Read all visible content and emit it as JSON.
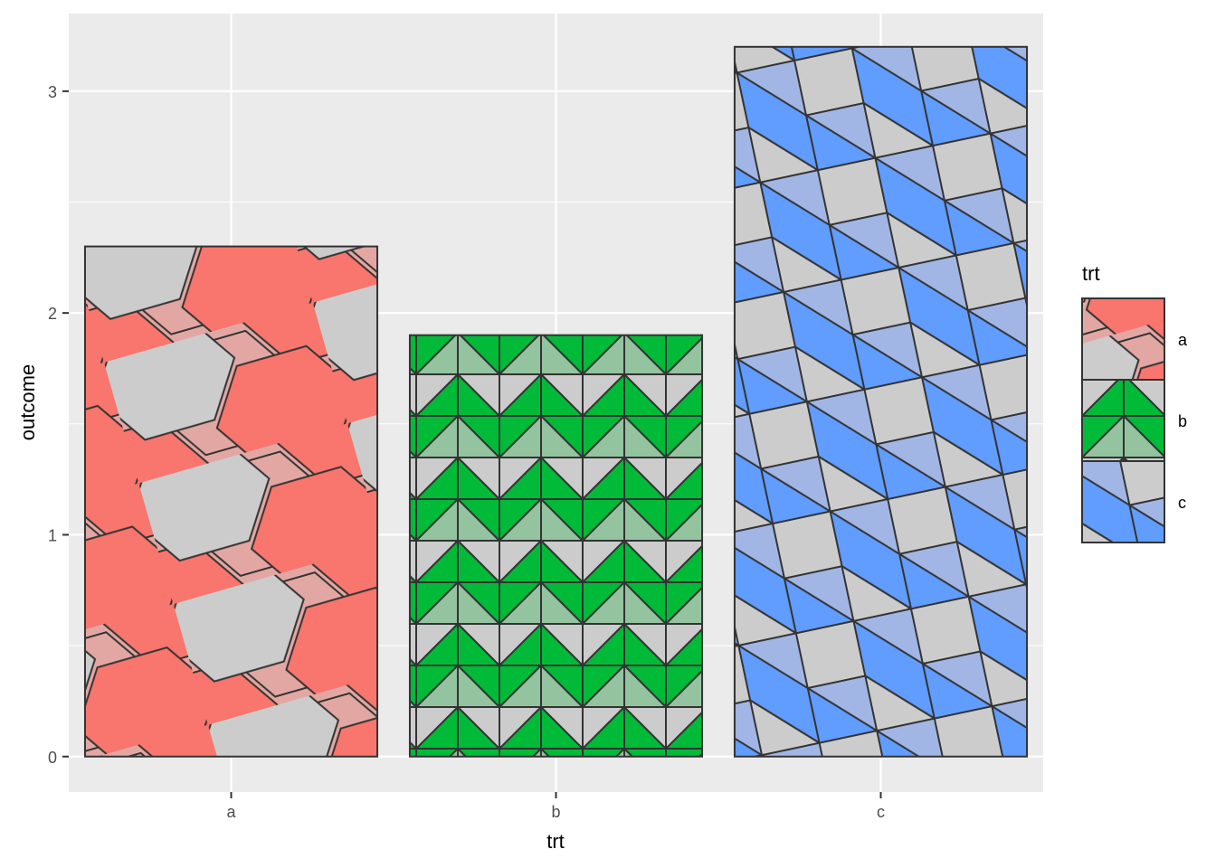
{
  "chart_data": {
    "type": "bar",
    "title": "",
    "xlabel": "trt",
    "ylabel": "outcome",
    "categories": [
      "a",
      "b",
      "c"
    ],
    "values": [
      2.3,
      1.9,
      3.2
    ],
    "ylim": [
      -0.16,
      3.35
    ],
    "yticks": [
      0,
      1,
      2,
      3
    ],
    "grid": true,
    "legend": {
      "title": "trt",
      "position": "right",
      "entries": [
        "a",
        "b",
        "c"
      ]
    },
    "patterns": {
      "a": {
        "name": "hexagon",
        "colors": [
          "#F8766D",
          "#E3A7A3",
          "#CCCCCC"
        ]
      },
      "b": {
        "name": "pinwheel",
        "colors": [
          "#00BA38",
          "#93C39F",
          "#CCCCCC"
        ]
      },
      "c": {
        "name": "rhombille",
        "colors": [
          "#619CFF",
          "#A2B6E5",
          "#CCCCCC"
        ]
      }
    },
    "colors": {
      "panel": "#EBEBEB",
      "grid": "#FFFFFF",
      "outline": "#333333"
    }
  }
}
